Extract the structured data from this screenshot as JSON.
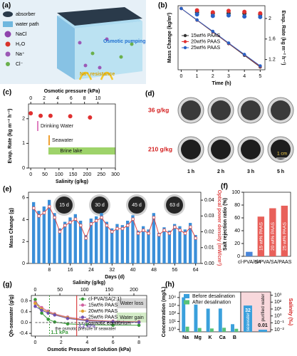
{
  "panel_a": {
    "label": "(a)",
    "legend": [
      "absorber",
      "water path",
      "NaCl",
      "H₂O",
      "Na⁺",
      "Cl⁻"
    ],
    "texts": [
      "Osmotic pumping",
      "Na⁺ resistance"
    ]
  },
  "panel_d": {
    "label": "(d)",
    "rows": [
      "36 g/kg",
      "210 g/kg"
    ],
    "cols": [
      "1 h",
      "2 h",
      "3 h",
      "5 h"
    ],
    "scale": "1 cm"
  },
  "chart_data": [
    {
      "panel": "(b)",
      "type": "line",
      "xlabel": "Time (h)",
      "ylabel": "Mass Change (kg/m²)",
      "y2label": "Evap. Rate (kg m⁻² h⁻¹)",
      "x": [
        0,
        1,
        2,
        3,
        4,
        5
      ],
      "xlim": [
        -0.2,
        5.3
      ],
      "xticks": [
        0,
        1,
        2,
        3,
        4,
        5
      ],
      "ylim": [
        -11,
        0.5
      ],
      "y2lim": [
        1.0,
        2.25
      ],
      "y2ticks": [
        1.2,
        1.6,
        2.0
      ],
      "series": [
        {
          "name": "15wt% PAAS",
          "color": "#333333",
          "values": [
            0,
            -2.1,
            -4.2,
            -6.3,
            -8.4,
            -10.5
          ]
        },
        {
          "name": "20wt% PAAS",
          "color": "#e03030",
          "values": [
            0,
            -2.08,
            -4.15,
            -6.25,
            -8.3,
            -10.4
          ]
        },
        {
          "name": "25wt% PAAS",
          "color": "#2a62c4",
          "values": [
            0,
            -2.05,
            -4.1,
            -6.2,
            -8.25,
            -10.3
          ]
        },
        {
          "type": "scatter",
          "axis": "y2",
          "color": "#333333",
          "values": [
            null,
            2.12,
            2.1,
            2.1,
            2.1,
            2.08
          ]
        },
        {
          "type": "scatter",
          "axis": "y2",
          "color": "#e03030",
          "values": [
            null,
            2.16,
            2.12,
            2.15,
            2.13,
            2.1
          ]
        },
        {
          "type": "scatter",
          "axis": "y2",
          "color": "#2a62c4",
          "values": [
            null,
            2.08,
            2.05,
            2.06,
            2.04,
            2.03
          ]
        }
      ]
    },
    {
      "panel": "(c)",
      "type": "scatter",
      "x2label": "Osmotic pressure (kPa)",
      "x2lim": [
        -0.34,
        12.6
      ],
      "x2ticks": [
        0,
        2,
        4,
        6,
        8,
        10
      ],
      "xlabel": "Salinity (g/kg)",
      "xlim": [
        -8,
        300
      ],
      "xticks": [
        0,
        50,
        100,
        150,
        200,
        250,
        300
      ],
      "ylabel": "Evap. Rate (kg m⁻² h⁻¹)",
      "ylim": [
        0,
        2.6
      ],
      "yticks": [
        0,
        1,
        2
      ],
      "x": [
        0,
        35,
        70,
        140,
        210
      ],
      "series": [
        {
          "color": "#e03030",
          "values": [
            2.22,
            2.12,
            2.12,
            2.1,
            2.05
          ]
        }
      ],
      "annotations": [
        "Drinking Water",
        "Seawater",
        "Brine lake"
      ]
    },
    {
      "panel": "(e)",
      "type": "bar",
      "xlabel": "Days (d)",
      "ylabel": "Mass Change (g)",
      "y2label": "Optical power density (mW/cm²)",
      "x": [
        2,
        4,
        6,
        8,
        10,
        12,
        14,
        16,
        18,
        20,
        22,
        24,
        26,
        28,
        30,
        32,
        34,
        36,
        38,
        40,
        42,
        44,
        46,
        48,
        50,
        52,
        54,
        56,
        58,
        60,
        62,
        64
      ],
      "xlim": [
        0,
        66
      ],
      "xticks": [
        8,
        16,
        24,
        32,
        40,
        48,
        56,
        64
      ],
      "ylim": [
        0,
        6.5
      ],
      "yticks": [
        0,
        2,
        4,
        6
      ],
      "y2lim": [
        0,
        0.045
      ],
      "y2ticks": [
        {
          "value": 0,
          "label": "0.00"
        },
        {
          "value": 0.01,
          "label": "0.01"
        },
        {
          "value": 0.02,
          "label": "0.02"
        },
        {
          "value": 0.03,
          "label": "0.03"
        },
        {
          "value": 0.04,
          "label": "0.04"
        }
      ],
      "series": [
        {
          "color": "#3b8fd9",
          "values": [
            5.6,
            4.8,
            5.2,
            5.8,
            4.6,
            3.2,
            3.8,
            4.2,
            4.5,
            3.9,
            2.6,
            4.1,
            4.3,
            4.6,
            3.8,
            3.2,
            3.6,
            3.5,
            3.9,
            4.4,
            3.0,
            3.4,
            3.1,
            4.6,
            2.8,
            3.3,
            3.0,
            3.6,
            3.4,
            3.1,
            3.7,
            2.6
          ]
        },
        {
          "type": "line",
          "axis": "y2",
          "color": "#e04848",
          "values": [
            0.035,
            0.03,
            0.032,
            0.036,
            0.029,
            0.02,
            0.024,
            0.026,
            0.028,
            0.024,
            0.016,
            0.025,
            0.027,
            0.029,
            0.024,
            0.02,
            0.022,
            0.022,
            0.024,
            0.028,
            0.019,
            0.021,
            0.019,
            0.029,
            0.018,
            0.021,
            0.019,
            0.023,
            0.021,
            0.019,
            0.023,
            0.016
          ]
        }
      ],
      "annotations": [
        "15 d",
        "30 d",
        "45 d",
        "63 d"
      ]
    },
    {
      "panel": "(f)",
      "type": "bar",
      "ylabel": "Salt rejection ratio (%)",
      "ylim": [
        0,
        100
      ],
      "yticks": [
        0,
        20,
        40,
        60,
        80,
        100
      ],
      "categories": [
        "cl-PVA/SA",
        "15 wt% PAAS",
        "20 wt% PAAS",
        "25 wt% PAAS"
      ],
      "values": [
        7,
        62,
        75,
        79
      ],
      "colors": [
        "#4a86d8",
        "#e8605a",
        "#e8605a",
        "#e8605a"
      ],
      "group_label": "cl-PVA/SA/PAAS"
    },
    {
      "panel": "(g)",
      "type": "line",
      "xlabel": "Osmotic Pressure of Solution (kPa)",
      "x2label": "Salinity (g/kg)",
      "ylabel": "Qh-seawater (g/g)",
      "x": [
        0,
        0.5,
        1,
        1.5,
        2.5,
        4,
        6,
        8
      ],
      "xlim": [
        -0.3,
        8.6
      ],
      "xticks": [
        0,
        2,
        4,
        6,
        8
      ],
      "x2lim": [
        -7.9,
        226
      ],
      "x2ticks": [
        0,
        50,
        100,
        150,
        200
      ],
      "ylim": [
        -0.5,
        1.0
      ],
      "yticks": [
        -0.4,
        {
          "value": 0,
          "label": "0.0"
        },
        0.4,
        0.8
      ],
      "series": [
        {
          "name": "cl-PVA/SA(2:1)",
          "color": "#3a9a3a",
          "values": [
            0.85,
            0.35,
            0.12,
            0.02,
            -0.05,
            -0.08,
            -0.1,
            -0.1
          ]
        },
        {
          "name": "15wt% PAAS",
          "color": "#d060a0",
          "values": [
            0.75,
            0.55,
            0.42,
            0.32,
            0.2,
            0.1,
            0.05,
            0.03
          ]
        },
        {
          "name": "20wt% PAAS",
          "color": "#e0a030",
          "values": [
            0.7,
            0.5,
            0.38,
            0.3,
            0.18,
            0.08,
            0.04,
            0.02
          ]
        },
        {
          "name": "25wt% PAAS",
          "color": "#7050b0",
          "values": [
            0.6,
            0.45,
            0.35,
            0.28,
            0.15,
            0.06,
            0.03,
            0.01
          ]
        },
        {
          "name": "osmotic equilibrium",
          "color": "#555555",
          "dash": true,
          "values": [
            0,
            0,
            0,
            0,
            0,
            0,
            0,
            0
          ]
        }
      ],
      "vlines": [
        {
          "value": 1.1,
          "label": "1.1 kPa"
        },
        {
          "value": 3.2,
          "label": "3.2 kPa"
        }
      ],
      "annotations": [
        "Water loss",
        "Water gain",
        "the osmotic presure of seawater"
      ]
    },
    {
      "panel": "(h)",
      "type": "bar",
      "log": true,
      "ylabel": "Concentration (mg/L)",
      "ylim": [
        0.5,
        50000
      ],
      "yticks": [
        {
          "value": 1,
          "label": "10⁰"
        },
        {
          "value": 10,
          "label": "10¹"
        },
        {
          "value": 100,
          "label": "10²"
        },
        {
          "value": 1000,
          "label": "10³"
        },
        {
          "value": 10000,
          "label": "10⁴"
        }
      ],
      "categories": [
        "Na",
        "Mg",
        "K",
        "Ca",
        "B"
      ],
      "series": [
        {
          "name": "Before desalination",
          "color": "#3aa0dc",
          "values": [
            10500,
            1300,
            400,
            410,
            4.5
          ]
        },
        {
          "name": "After desalination",
          "color": "#57c27a",
          "values": [
            2.2,
            1.5,
            1.3,
            1.6,
            1.2
          ]
        }
      ]
    },
    {
      "type": "bar",
      "log": true,
      "y2label": "Salinity (‰)",
      "y2lim": [
        0.005,
        3000
      ],
      "y2ticks": [
        {
          "value": 0.01,
          "label": "10⁻²"
        },
        {
          "value": 0.1,
          "label": "10⁻¹"
        },
        {
          "value": 1,
          "label": "10⁰"
        },
        {
          "value": 10,
          "label": "10¹"
        },
        {
          "value": 100,
          "label": "10²"
        },
        {
          "value": 1000,
          "label": "10³"
        }
      ],
      "categories": [
        "seawater",
        "purified water"
      ],
      "data_labels": true,
      "series": [
        {
          "axis": "y2",
          "color": "#3aa0dc",
          "values": [
            32,
            0.01
          ]
        }
      ]
    }
  ]
}
